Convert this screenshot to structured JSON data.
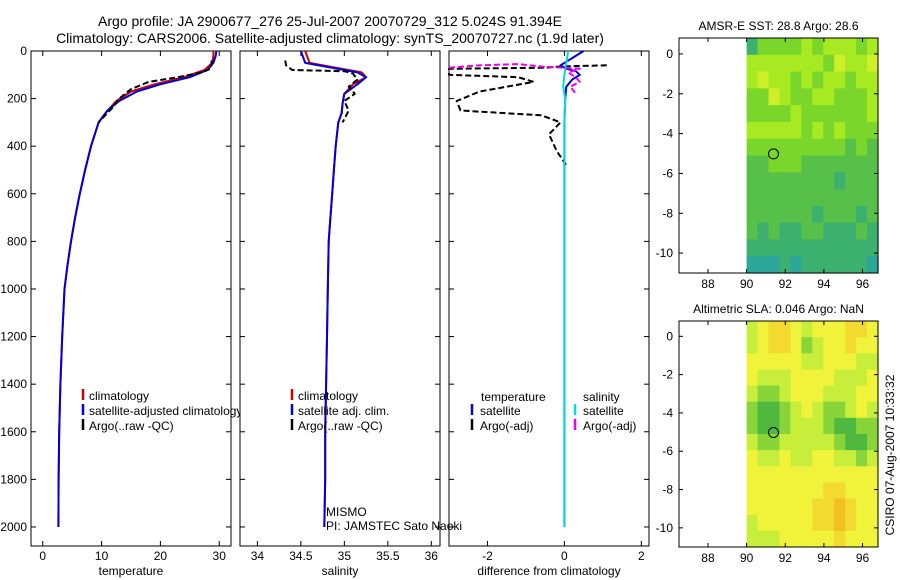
{
  "figure": {
    "title_line1": "Argo profile: JA 2900677_276 25-Jul-2007 20070729_312 5.024S 91.394E",
    "title_line2": "Climatology: CARS2006. Satellite-adjusted climatology: synTS_20070727.nc (1.9d later)",
    "side_credit": "CSIRO 07-Aug-2007 10:33:32",
    "annotation_line1": "MISMO",
    "annotation_line2": "PI: JAMSTEC Sato Naoki"
  },
  "colors": {
    "climatology": "#cc0000",
    "satellite": "#0000dd",
    "argo": "#000000",
    "argo_adj": "#ee00ee",
    "satellite_salinity": "#00dddd"
  },
  "chart_data": [
    {
      "type": "line",
      "id": "temperature",
      "xlabel": "temperature",
      "ylabel": "",
      "xlim": [
        -2,
        32
      ],
      "ylim": [
        2080,
        0
      ],
      "xticks": [
        0,
        10,
        20,
        30
      ],
      "xtick_labels": [
        "0",
        "10",
        "20",
        "30"
      ],
      "yticks": [
        0,
        200,
        400,
        600,
        800,
        1000,
        1200,
        1400,
        1600,
        1800,
        2000
      ],
      "ytick_labels": [
        "0",
        "200",
        "400",
        "600",
        "800",
        "1000",
        "1200",
        "1400",
        "1600",
        "1800",
        "2000"
      ],
      "legend_labels": [
        "climatology",
        "satellite-adjusted climatology",
        "Argo(..raw -QC)"
      ],
      "series": [
        {
          "name": "climatology",
          "color_key": "climatology",
          "dash": "",
          "x": [
            29,
            29,
            28.8,
            27.5,
            24,
            19,
            15,
            12.5,
            11,
            9.5,
            8.2,
            7.2,
            6.3,
            5.5,
            4.8,
            4.2,
            3.7,
            3.3,
            3.0,
            2.8,
            2.7,
            2.65
          ],
          "y": [
            0,
            20,
            50,
            80,
            110,
            140,
            170,
            210,
            250,
            300,
            400,
            500,
            600,
            700,
            800,
            900,
            1000,
            1200,
            1400,
            1600,
            1800,
            2000
          ]
        },
        {
          "name": "satellite-adjusted climatology",
          "color_key": "satellite",
          "dash": "",
          "x": [
            29.5,
            29.4,
            29,
            28,
            25,
            20,
            16,
            13,
            11,
            9.5,
            8.2,
            7.2,
            6.3,
            5.5,
            4.8,
            4.2,
            3.7,
            3.3,
            3.0,
            2.8,
            2.7,
            2.65
          ],
          "y": [
            0,
            20,
            50,
            80,
            110,
            140,
            170,
            210,
            250,
            300,
            400,
            500,
            600,
            700,
            800,
            900,
            1000,
            1200,
            1400,
            1600,
            1800,
            2000
          ]
        },
        {
          "name": "Argo(..raw -QC)",
          "color_key": "argo",
          "dash": "6 3",
          "x": [
            28.7,
            28.7,
            28.6,
            28.5,
            27,
            23,
            18,
            15,
            13,
            11.8,
            11,
            9.5
          ],
          "y": [
            40,
            55,
            65,
            75,
            90,
            110,
            130,
            160,
            200,
            240,
            260,
            300
          ]
        }
      ]
    },
    {
      "type": "line",
      "id": "salinity",
      "xlabel": "salinity",
      "ylabel": "",
      "xlim": [
        33.8,
        36.1
      ],
      "ylim": [
        2080,
        0
      ],
      "xticks": [
        34,
        34.5,
        35,
        35.5,
        36
      ],
      "xtick_labels": [
        "34",
        "34.5",
        "35",
        "35.5",
        "36"
      ],
      "legend_labels": [
        "climatology",
        "satellite adj. clim.",
        "Argo(..raw -QC)"
      ],
      "series": [
        {
          "name": "climatology",
          "color_key": "climatology",
          "dash": "",
          "x": [
            34.55,
            34.6,
            34.9,
            35.2,
            35.25,
            35.1,
            35.0,
            34.98,
            34.97,
            34.93,
            34.9,
            34.88,
            34.86,
            34.84,
            34.82,
            34.81,
            34.8,
            34.79,
            34.78,
            34.78,
            34.77
          ],
          "y": [
            0,
            50,
            70,
            90,
            110,
            140,
            180,
            220,
            260,
            300,
            400,
            500,
            600,
            700,
            800,
            1000,
            1200,
            1400,
            1600,
            1800,
            2000
          ]
        },
        {
          "name": "satellite adj. clim.",
          "color_key": "satellite",
          "dash": "",
          "x": [
            34.5,
            34.55,
            34.85,
            35.15,
            35.25,
            35.15,
            35.0,
            34.98,
            34.97,
            34.93,
            34.9,
            34.88,
            34.86,
            34.84,
            34.82,
            34.81,
            34.8,
            34.79,
            34.78,
            34.78,
            34.77
          ],
          "y": [
            0,
            50,
            70,
            90,
            110,
            140,
            180,
            220,
            260,
            300,
            400,
            500,
            600,
            700,
            800,
            1000,
            1200,
            1400,
            1600,
            1800,
            2000
          ]
        },
        {
          "name": "Argo(..raw -QC)",
          "color_key": "argo",
          "dash": "6 3",
          "x": [
            34.32,
            34.33,
            34.4,
            35.0,
            35.1,
            35.15,
            35.05,
            35.12,
            35.0,
            35.05,
            34.98
          ],
          "y": [
            40,
            60,
            80,
            85,
            95,
            120,
            150,
            180,
            210,
            250,
            300
          ]
        }
      ]
    },
    {
      "type": "line",
      "id": "difference",
      "xlabel": "difference from climatology",
      "ylabel": "",
      "xlim": [
        -3,
        2.2
      ],
      "ylim": [
        2080,
        0
      ],
      "xticks": [
        -2,
        0,
        2
      ],
      "xtick_labels": [
        "-2",
        "0",
        "2"
      ],
      "legend_headers": [
        "temperature",
        "salinity"
      ],
      "legend_labels": [
        "satellite",
        "Argo(-adj)",
        "satellite",
        "Argo(-adj)"
      ],
      "series": [
        {
          "name": "temperature satellite",
          "color_key": "satellite",
          "dash": "",
          "x": [
            0.5,
            0.2,
            -0.1,
            0.05,
            0.3,
            0.4,
            0.2,
            0.05,
            0.02,
            0,
            0,
            0,
            0
          ],
          "y": [
            0,
            30,
            60,
            75,
            85,
            100,
            120,
            150,
            200,
            300,
            500,
            1000,
            2000
          ]
        },
        {
          "name": "temperature Argo(-adj)",
          "color_key": "argo",
          "dash": "6 3",
          "x": [
            1.1,
            -0.1,
            -0.5,
            -3.0,
            -3.0,
            -1.2,
            -0.8,
            -2.2,
            -2.8,
            -2.7,
            -0.6,
            -0.1,
            -0.4,
            -0.2,
            0.05
          ],
          "y": [
            60,
            65,
            70,
            75,
            100,
            110,
            130,
            170,
            210,
            250,
            270,
            300,
            350,
            420,
            480
          ]
        },
        {
          "name": "salinity satellite",
          "color_key": "satellite_salinity",
          "dash": "",
          "x": [
            0.1,
            0.05,
            0,
            -0.03,
            0.02,
            0,
            0,
            0,
            0
          ],
          "y": [
            0,
            50,
            100,
            150,
            200,
            300,
            500,
            1000,
            2000
          ]
        },
        {
          "name": "salinity Argo(-adj)",
          "color_key": "argo_adj",
          "dash": "6 3",
          "x": [
            -3.0,
            -2.2,
            -1.2,
            -0.6,
            0.4,
            0.1,
            0.3,
            0.4,
            0.15,
            0.3
          ],
          "y": [
            70,
            60,
            55,
            65,
            75,
            90,
            110,
            130,
            150,
            180
          ]
        }
      ]
    },
    {
      "type": "heatmap",
      "id": "amsr_sst",
      "title": "AMSR-E SST: 28.8 Argo: 28.6",
      "xlim": [
        86.5,
        96.8
      ],
      "ylim": [
        -11,
        0.8
      ],
      "xticks": [
        88,
        90,
        92,
        94,
        96
      ],
      "xtick_labels": [
        "88",
        "90",
        "92",
        "94",
        "96"
      ],
      "yticks": [
        0,
        -2,
        -4,
        -6,
        -8,
        -10
      ],
      "ytick_labels": [
        "0",
        "-2",
        "-4",
        "-6",
        "-8",
        "-10"
      ],
      "data_lon_range": [
        90,
        96.8
      ],
      "data_lat_range": [
        -11,
        0.8
      ],
      "grid_cols": 12,
      "grid_rows": 14,
      "palette": [
        "#2aa79a",
        "#3cb06e",
        "#57c049",
        "#7ad62b",
        "#a7ea22",
        "#cfef28"
      ],
      "cells": [
        [
          1,
          3,
          3,
          3,
          3,
          4,
          3,
          4,
          4,
          4,
          3,
          4
        ],
        [
          4,
          4,
          4,
          4,
          4,
          4,
          4,
          3,
          5,
          4,
          4,
          5
        ],
        [
          4,
          5,
          4,
          4,
          3,
          4,
          3,
          4,
          4,
          3,
          4,
          4
        ],
        [
          3,
          3,
          5,
          4,
          3,
          3,
          4,
          4,
          3,
          3,
          3,
          4
        ],
        [
          3,
          3,
          3,
          3,
          4,
          3,
          3,
          3,
          3,
          3,
          3,
          4
        ],
        [
          4,
          4,
          4,
          4,
          4,
          3,
          4,
          3,
          4,
          3,
          3,
          3
        ],
        [
          3,
          3,
          3,
          3,
          3,
          3,
          3,
          3,
          3,
          2,
          3,
          2
        ],
        [
          2,
          2,
          3,
          3,
          3,
          2,
          2,
          2,
          2,
          2,
          2,
          2
        ],
        [
          2,
          2,
          2,
          2,
          2,
          2,
          2,
          2,
          1,
          2,
          2,
          2
        ],
        [
          2,
          2,
          2,
          2,
          2,
          2,
          2,
          2,
          2,
          2,
          2,
          2
        ],
        [
          2,
          2,
          2,
          2,
          2,
          2,
          1,
          2,
          2,
          2,
          1,
          2
        ],
        [
          2,
          1,
          2,
          1,
          1,
          2,
          2,
          1,
          1,
          1,
          2,
          1
        ],
        [
          1,
          1,
          1,
          1,
          1,
          1,
          1,
          1,
          1,
          1,
          1,
          1
        ],
        [
          0,
          0,
          0,
          1,
          0,
          1,
          1,
          1,
          1,
          1,
          1,
          0
        ]
      ],
      "marker": {
        "lon": 91.39,
        "lat": -5.02
      }
    },
    {
      "type": "heatmap",
      "id": "altimetric_sla",
      "title": "Altimetric SLA: 0.046 Argo: NaN",
      "xlim": [
        86.5,
        96.8
      ],
      "ylim": [
        -11,
        0.8
      ],
      "xticks": [
        88,
        90,
        92,
        94,
        96
      ],
      "xtick_labels": [
        "88",
        "90",
        "92",
        "94",
        "96"
      ],
      "yticks": [
        0,
        -2,
        -4,
        -6,
        -8,
        -10
      ],
      "ytick_labels": [
        "0",
        "-2",
        "-4",
        "-6",
        "-8",
        "-10"
      ],
      "data_lon_range": [
        90,
        96.8
      ],
      "data_lat_range": [
        -11,
        0.8
      ],
      "grid_cols": 12,
      "grid_rows": 14,
      "palette": [
        "#4fb93f",
        "#88d53a",
        "#c8ee3c",
        "#f1f23a",
        "#f2da30",
        "#f0c020"
      ],
      "cells": [
        [
          2,
          3,
          4,
          4,
          3,
          2,
          3,
          3,
          3,
          4,
          4,
          3
        ],
        [
          2,
          3,
          4,
          4,
          3,
          1,
          2,
          3,
          3,
          4,
          3,
          3
        ],
        [
          3,
          3,
          3,
          3,
          3,
          2,
          2,
          3,
          3,
          3,
          2,
          2
        ],
        [
          3,
          2,
          2,
          2,
          3,
          3,
          3,
          3,
          2,
          2,
          2,
          3
        ],
        [
          2,
          1,
          1,
          2,
          3,
          3,
          3,
          2,
          2,
          2,
          3,
          3
        ],
        [
          1,
          0,
          0,
          1,
          2,
          3,
          2,
          1,
          1,
          2,
          3,
          2
        ],
        [
          1,
          0,
          0,
          1,
          2,
          2,
          2,
          1,
          0,
          0,
          1,
          1
        ],
        [
          2,
          1,
          1,
          2,
          2,
          2,
          2,
          2,
          1,
          0,
          0,
          1
        ],
        [
          3,
          2,
          2,
          3,
          2,
          2,
          3,
          3,
          2,
          2,
          1,
          2
        ],
        [
          3,
          3,
          3,
          3,
          3,
          3,
          3,
          3,
          3,
          3,
          3,
          3
        ],
        [
          3,
          3,
          3,
          3,
          3,
          3,
          3,
          4,
          4,
          3,
          3,
          3
        ],
        [
          3,
          3,
          3,
          3,
          3,
          3,
          4,
          4,
          5,
          4,
          3,
          3
        ],
        [
          2,
          3,
          3,
          3,
          3,
          3,
          4,
          4,
          5,
          4,
          3,
          3
        ],
        [
          2,
          2,
          2,
          3,
          3,
          3,
          3,
          3,
          4,
          3,
          3,
          3
        ]
      ],
      "marker": {
        "lon": 91.39,
        "lat": -5.02
      }
    }
  ]
}
